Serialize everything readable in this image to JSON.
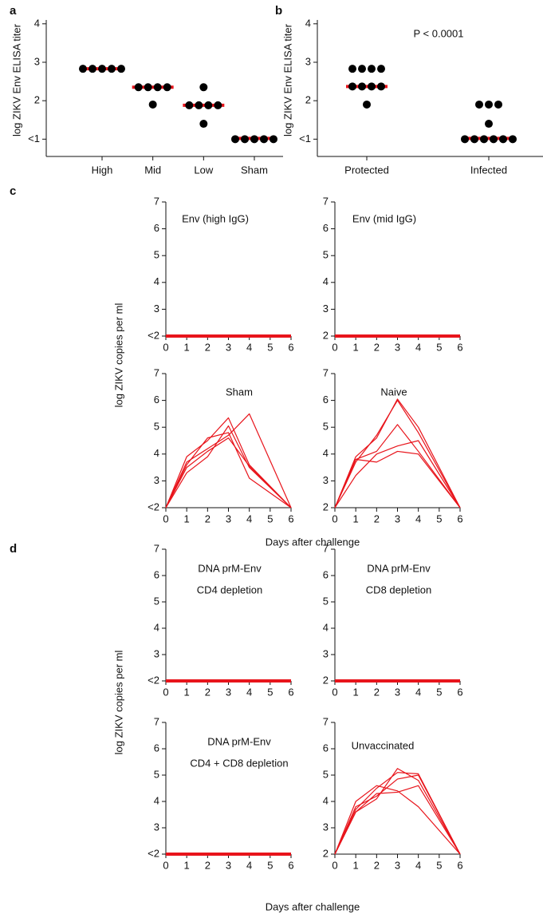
{
  "groups": [
    {
      "label": "a"
    },
    {
      "label": "b"
    },
    {
      "label": "c",
      "ylabel": "log ZIKV copies per ml",
      "xlabel": "Days after challenge"
    },
    {
      "label": "d",
      "ylabel": "log ZIKV copies per ml",
      "xlabel": "Days after challenge"
    }
  ],
  "chart_data": [
    {
      "type": "dot",
      "ylabel": "log ZIKV Env ELISA titer",
      "color": "#000000",
      "median_color": "#e8141b",
      "categories": [
        "High",
        "Mid",
        "Low",
        "Sham"
      ],
      "values": [
        [
          2.83,
          2.83,
          2.83,
          2.83,
          2.83
        ],
        [
          2.35,
          2.35,
          2.35,
          2.35,
          1.9
        ],
        [
          2.35,
          1.88,
          1.88,
          1.88,
          1.88,
          1.4
        ],
        [
          1.0,
          1.0,
          1.0,
          1.0,
          1.0
        ]
      ],
      "medians": [
        2.83,
        2.35,
        1.88,
        1.02
      ],
      "ylim": [
        0.55,
        4.1
      ],
      "yticks": [
        {
          "value": 1,
          "label": "<1"
        },
        2,
        3,
        4
      ]
    },
    {
      "type": "dot",
      "ylabel": "log ZIKV Env ELISA titer",
      "color": "#000000",
      "median_color": "#e8141b",
      "annotation": "P < 0.0001",
      "categories": [
        "Protected",
        "Infected"
      ],
      "values": [
        [
          2.83,
          2.83,
          2.83,
          2.83,
          2.37,
          2.37,
          2.37,
          2.37,
          1.9
        ],
        [
          1.9,
          1.9,
          1.9,
          1.4,
          1.0,
          1.0,
          1.0,
          1.0,
          1.0,
          1.0
        ]
      ],
      "medians": [
        2.37,
        1.02
      ],
      "ylim": [
        0.55,
        4.1
      ],
      "yticks": [
        {
          "value": 1,
          "label": "<1"
        },
        2,
        3,
        4
      ]
    },
    {
      "type": "line",
      "title": [
        "Env (high IgG)"
      ],
      "color": "#e8141b",
      "x": [
        0,
        1,
        2,
        3,
        4,
        6
      ],
      "series": [
        {
          "values": [
            2,
            2,
            2,
            2,
            2,
            2
          ]
        }
      ],
      "xlim": [
        0,
        6
      ],
      "xticks": [
        0,
        1,
        2,
        3,
        4,
        5,
        6
      ],
      "ylim": [
        2,
        7
      ],
      "yticks": [
        {
          "value": 2,
          "label": "<2"
        },
        3,
        4,
        5,
        6,
        7
      ]
    },
    {
      "type": "line",
      "title": [
        "Env (mid IgG)"
      ],
      "color": "#e8141b",
      "x": [
        0,
        1,
        2,
        3,
        4,
        6
      ],
      "series": [
        {
          "values": [
            2,
            2,
            2,
            2,
            2,
            2
          ]
        }
      ],
      "xlim": [
        0,
        6
      ],
      "xticks": [
        0,
        1,
        2,
        3,
        4,
        5,
        6
      ],
      "ylim": [
        2,
        7
      ],
      "yticks": [
        2,
        3,
        4,
        5,
        6,
        7
      ]
    },
    {
      "type": "line",
      "title": [
        "Sham"
      ],
      "color": "#e8141b",
      "x": [
        0,
        1,
        2,
        3,
        4,
        6
      ],
      "series": [
        {
          "values": [
            2,
            3.9,
            4.5,
            5.35,
            3.6,
            2
          ]
        },
        {
          "values": [
            2,
            3.7,
            4.2,
            4.7,
            5.5,
            2
          ]
        },
        {
          "values": [
            2,
            3.6,
            4.6,
            4.8,
            3.1,
            2
          ]
        },
        {
          "values": [
            2,
            3.3,
            3.9,
            5.05,
            3.5,
            2
          ]
        },
        {
          "values": [
            2,
            3.5,
            4.1,
            4.6,
            3.55,
            2
          ]
        }
      ],
      "xlim": [
        0,
        6
      ],
      "xticks": [
        0,
        1,
        2,
        3,
        4,
        5,
        6
      ],
      "ylim": [
        2,
        7
      ],
      "yticks": [
        {
          "value": 2,
          "label": "<2"
        },
        3,
        4,
        5,
        6,
        7
      ]
    },
    {
      "type": "line",
      "title": [
        "Naive"
      ],
      "color": "#e8141b",
      "x": [
        0,
        1,
        2,
        3,
        4,
        6
      ],
      "series": [
        {
          "values": [
            2,
            3.9,
            4.6,
            6.05,
            5.0,
            2
          ]
        },
        {
          "values": [
            2,
            3.7,
            4.7,
            6.0,
            4.8,
            2
          ]
        },
        {
          "values": [
            2,
            3.8,
            4.1,
            5.1,
            4.1,
            2
          ]
        },
        {
          "values": [
            2,
            3.2,
            4.0,
            4.3,
            4.5,
            2
          ]
        },
        {
          "values": [
            2,
            3.8,
            3.7,
            4.1,
            4.0,
            2
          ]
        }
      ],
      "xlim": [
        0,
        6
      ],
      "xticks": [
        0,
        1,
        2,
        3,
        4,
        5,
        6
      ],
      "ylim": [
        2,
        7
      ],
      "yticks": [
        2,
        3,
        4,
        5,
        6,
        7
      ]
    },
    {
      "type": "line",
      "title": [
        "DNA prM-Env",
        "CD4 depletion"
      ],
      "color": "#e8141b",
      "x": [
        0,
        1,
        2,
        3,
        4,
        6
      ],
      "series": [
        {
          "values": [
            2,
            2,
            2,
            2,
            2,
            2
          ]
        }
      ],
      "xlim": [
        0,
        6
      ],
      "xticks": [
        0,
        1,
        2,
        3,
        4,
        5,
        6
      ],
      "ylim": [
        2,
        7
      ],
      "yticks": [
        {
          "value": 2,
          "label": "<2"
        },
        3,
        4,
        5,
        6,
        7
      ]
    },
    {
      "type": "line",
      "title": [
        "DNA prM-Env",
        "CD8 depletion"
      ],
      "color": "#e8141b",
      "x": [
        0,
        1,
        2,
        3,
        4,
        6
      ],
      "series": [
        {
          "values": [
            2,
            2,
            2,
            2,
            2,
            2
          ]
        }
      ],
      "xlim": [
        0,
        6
      ],
      "xticks": [
        0,
        1,
        2,
        3,
        4,
        5,
        6
      ],
      "ylim": [
        2,
        7
      ],
      "yticks": [
        2,
        3,
        4,
        5,
        6,
        7
      ]
    },
    {
      "type": "line",
      "title": [
        "DNA prM-Env",
        "CD4 + CD8 depletion"
      ],
      "color": "#e8141b",
      "x": [
        0,
        1,
        2,
        3,
        4,
        6
      ],
      "series": [
        {
          "values": [
            2,
            2,
            2,
            2,
            2,
            2
          ]
        }
      ],
      "xlim": [
        0,
        6
      ],
      "xticks": [
        0,
        1,
        2,
        3,
        4,
        5,
        6
      ],
      "ylim": [
        2,
        7
      ],
      "yticks": [
        {
          "value": 2,
          "label": "<2"
        },
        3,
        4,
        5,
        6,
        7
      ]
    },
    {
      "type": "line",
      "title": [
        "Unvaccinated"
      ],
      "color": "#e8141b",
      "x": [
        0,
        1,
        2,
        3,
        4,
        6
      ],
      "series": [
        {
          "values": [
            2,
            4.0,
            4.6,
            4.4,
            3.8,
            2
          ]
        },
        {
          "values": [
            2,
            3.6,
            4.1,
            5.25,
            4.8,
            2
          ]
        },
        {
          "values": [
            2,
            3.7,
            4.5,
            5.1,
            5.05,
            2
          ]
        },
        {
          "values": [
            2,
            3.8,
            4.2,
            4.85,
            5.0,
            2
          ]
        },
        {
          "values": [
            2,
            3.6,
            4.3,
            4.35,
            4.6,
            2
          ]
        }
      ],
      "xlim": [
        0,
        6
      ],
      "xticks": [
        0,
        1,
        2,
        3,
        4,
        5,
        6
      ],
      "ylim": [
        2,
        7
      ],
      "yticks": [
        2,
        3,
        4,
        5,
        6,
        7
      ]
    }
  ]
}
